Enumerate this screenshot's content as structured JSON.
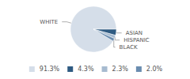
{
  "chart_data": {
    "type": "pie",
    "categories": [
      "WHITE",
      "ASIAN",
      "HISPANIC",
      "BLACK"
    ],
    "values": [
      91.3,
      4.3,
      2.3,
      2.0
    ],
    "value_labels": [
      "91.3%",
      "4.3%",
      "2.3%",
      "2.0%"
    ],
    "colors": [
      "#d5dee9",
      "#2f5b82",
      "#a7bbd0",
      "#6a8db0"
    ],
    "legend": "bottom"
  }
}
